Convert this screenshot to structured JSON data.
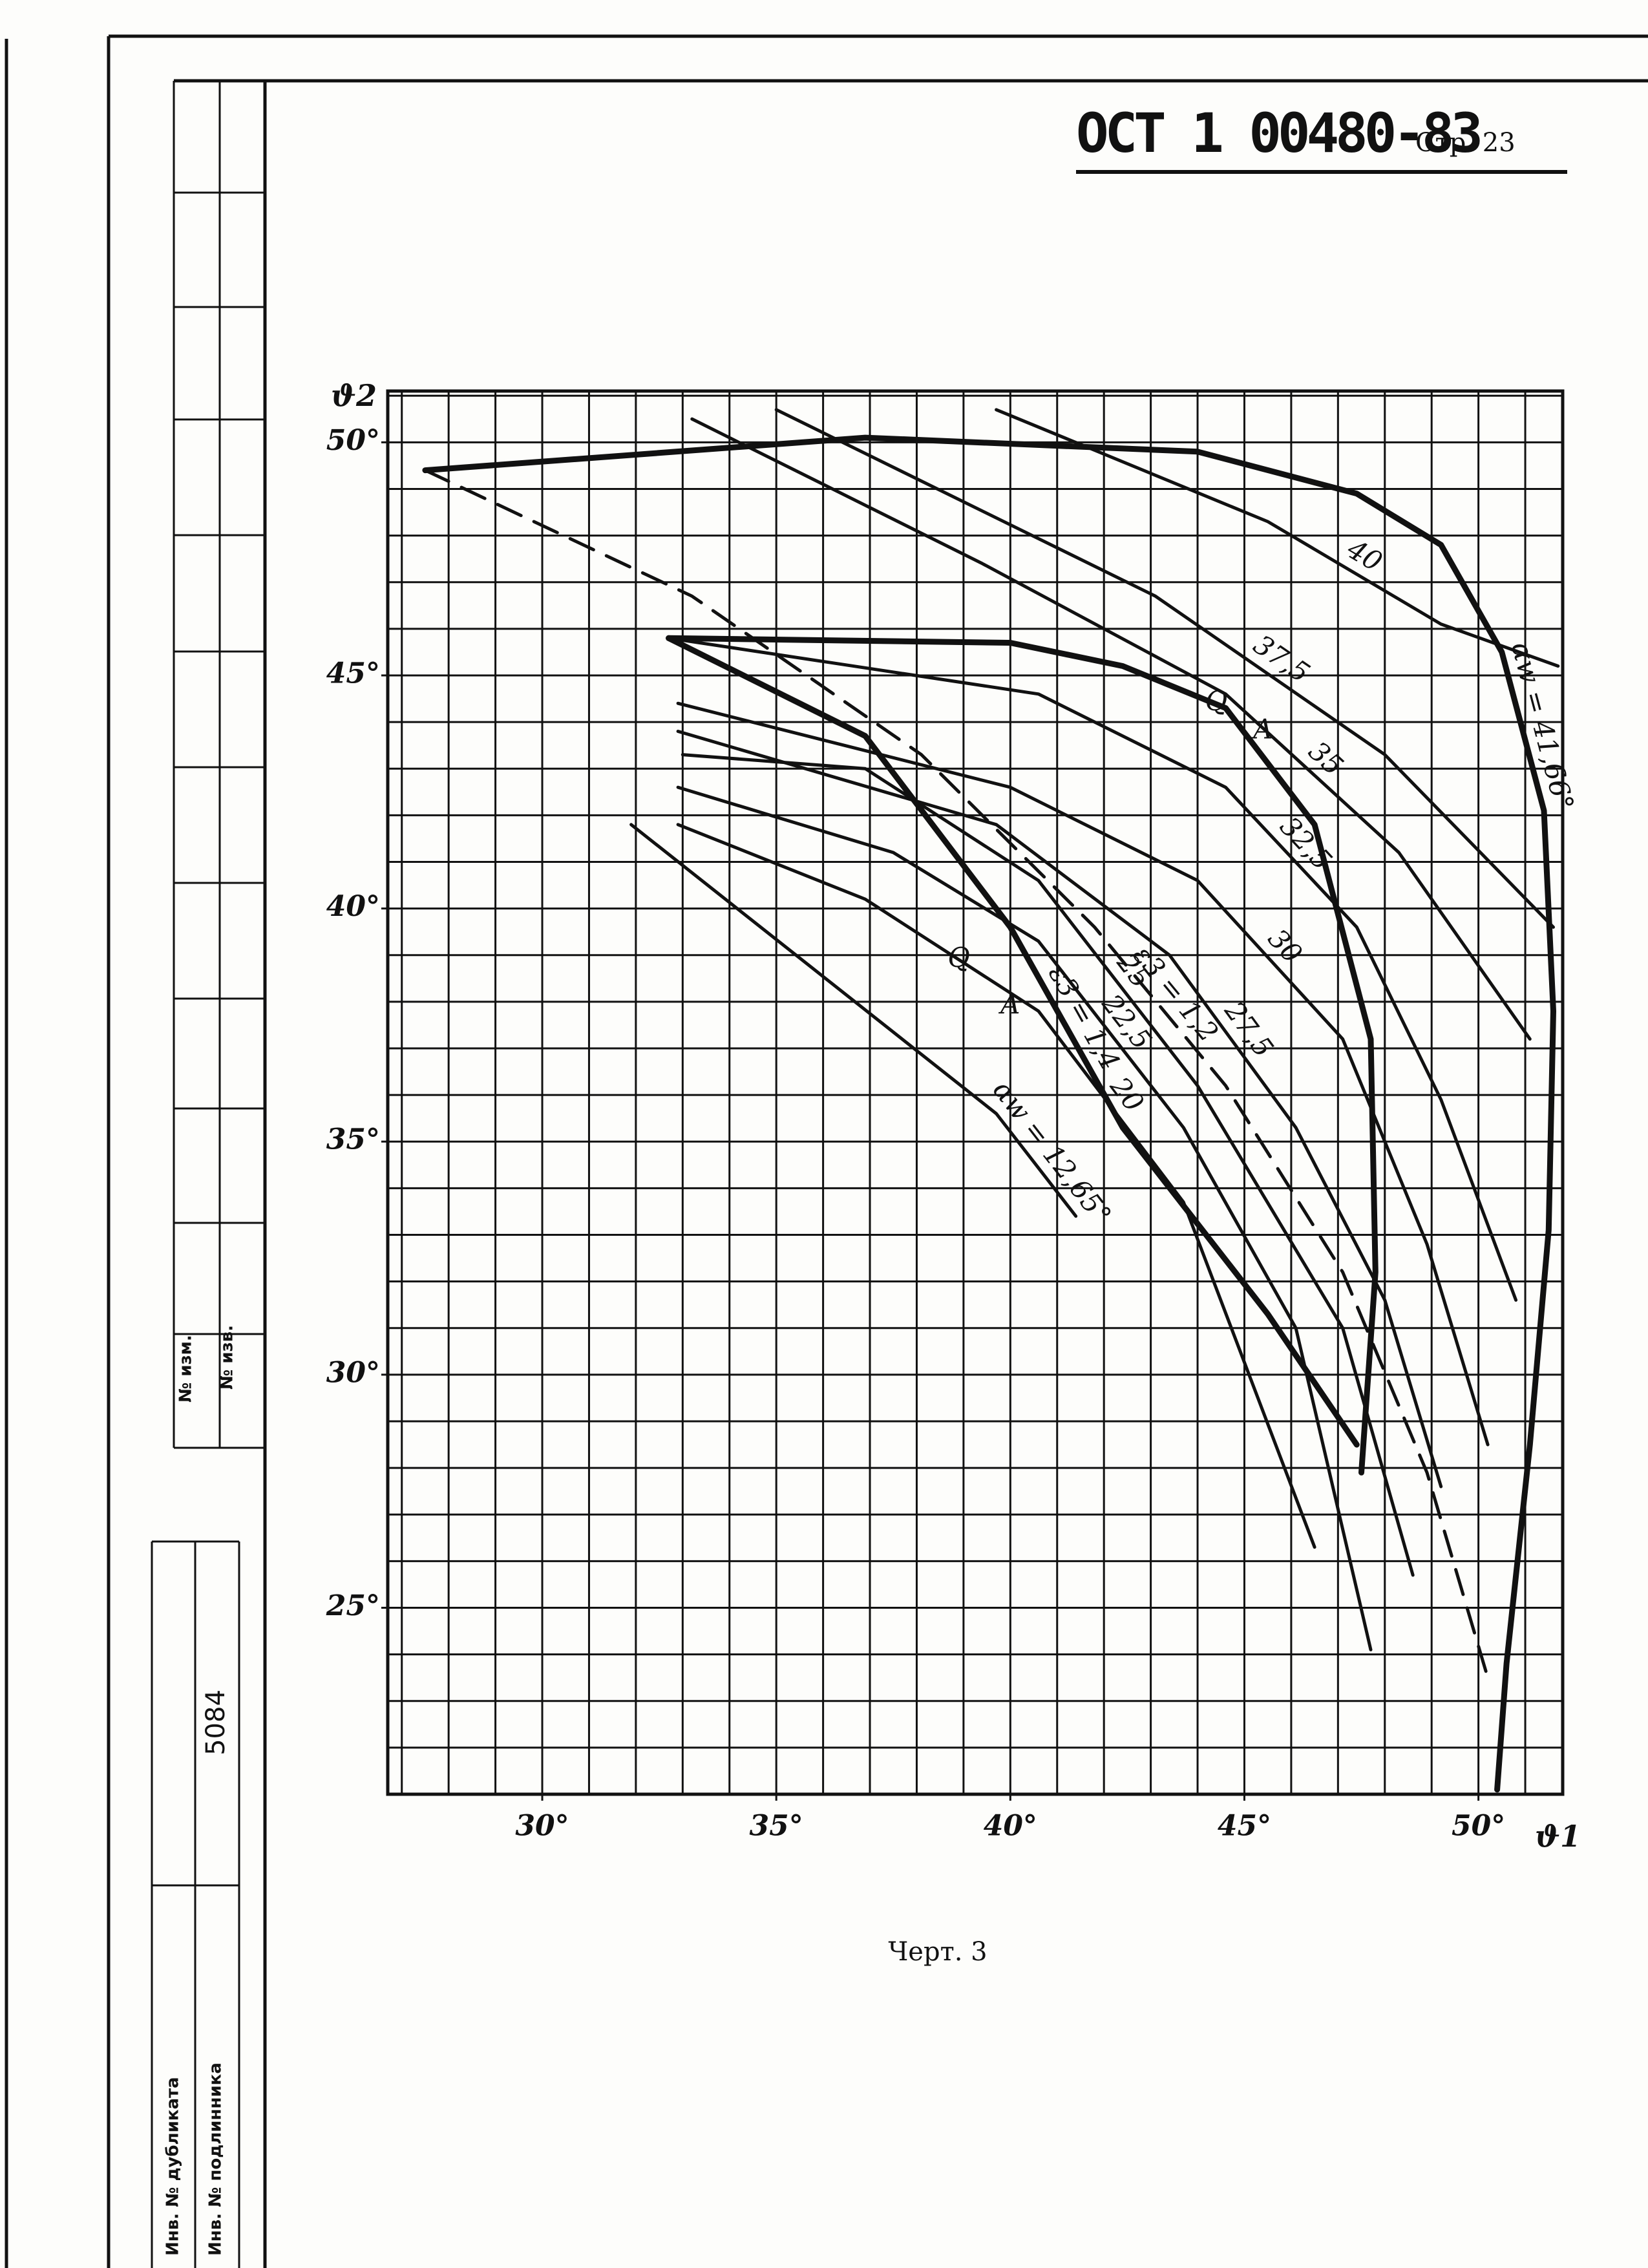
{
  "header": {
    "code": "ОСТ 1 00480-83",
    "page": "Стр. 23"
  },
  "stamp": {
    "change_no": "№ изм.",
    "notice_no": "№ изв.",
    "number": "5084",
    "duplicate_inv": "Инв. № дубликата",
    "original_inv": "Инв. № подлинника"
  },
  "caption": "Черт. 3",
  "chart_data": {
    "type": "line",
    "x_label": "ϑ1",
    "y_label": "ϑ2",
    "xlim": [
      26.7,
      51.8
    ],
    "ylim": [
      21,
      51.1
    ],
    "xticks": [
      {
        "value": 30,
        "label": "30°"
      },
      {
        "value": 35,
        "label": "35°"
      },
      {
        "value": 40,
        "label": "40°"
      },
      {
        "value": 45,
        "label": "45°"
      },
      {
        "value": 50,
        "label": "50°"
      }
    ],
    "yticks": [
      {
        "value": 25,
        "label": "25°"
      },
      {
        "value": 30,
        "label": "30°"
      },
      {
        "value": 35,
        "label": "35°"
      },
      {
        "value": 40,
        "label": "40°"
      },
      {
        "value": 45,
        "label": "45°"
      },
      {
        "value": 50,
        "label": "50°"
      }
    ],
    "grid": true,
    "minor_grid_step": 1,
    "color": "#111111",
    "series": [
      {
        "name": "αw = 41,66°",
        "style": "thick",
        "x": [
          27.5,
          36.9,
          44.0,
          47.4,
          49.2,
          50.5,
          51.4,
          51.6,
          51.5,
          51.1,
          50.6,
          50.4
        ],
        "values": [
          49.4,
          50.1,
          49.8,
          48.9,
          47.8,
          45.5,
          42.1,
          37.8,
          33.1,
          28.5,
          23.8,
          21.1
        ]
      },
      {
        "name": "40",
        "style": "thin",
        "x": [
          39.7,
          45.5,
          49.2,
          51.7
        ],
        "values": [
          50.7,
          48.3,
          46.1,
          45.2
        ]
      },
      {
        "name": "37,5",
        "style": "thin",
        "x": [
          35.0,
          43.1,
          48.0,
          51.6
        ],
        "values": [
          50.7,
          46.7,
          43.3,
          39.6
        ]
      },
      {
        "name": "35",
        "style": "thin",
        "x": [
          33.2,
          39.4,
          44.6,
          48.3,
          51.1
        ],
        "values": [
          50.5,
          47.4,
          44.6,
          41.2,
          37.2
        ]
      },
      {
        "name": "32,5",
        "style": "thin",
        "x": [
          32.7,
          40.6,
          44.6,
          47.4,
          49.2,
          50.8
        ],
        "values": [
          45.8,
          44.6,
          42.6,
          39.6,
          35.9,
          31.6
        ]
      },
      {
        "name": "30",
        "style": "thin",
        "x": [
          32.9,
          40.0,
          44.0,
          47.1,
          48.9,
          50.2
        ],
        "values": [
          44.4,
          42.6,
          40.6,
          37.2,
          32.8,
          28.5
        ]
      },
      {
        "name": "27,5",
        "style": "thin",
        "x": [
          32.9,
          39.7,
          43.4,
          46.1,
          48.0,
          49.2
        ],
        "values": [
          43.8,
          41.8,
          39.0,
          35.3,
          31.6,
          27.6
        ]
      },
      {
        "name": "25",
        "style": "thin",
        "x": [
          33.0,
          36.9,
          40.6,
          44.0,
          47.1,
          48.6
        ],
        "values": [
          43.3,
          43.0,
          40.6,
          36.2,
          31.0,
          25.7
        ]
      },
      {
        "name": "22,5",
        "style": "thin",
        "x": [
          32.9,
          37.5,
          40.6,
          43.7,
          46.1,
          47.7
        ],
        "values": [
          42.6,
          41.2,
          39.3,
          35.3,
          31.0,
          24.1
        ]
      },
      {
        "name": "20",
        "style": "thin",
        "x": [
          32.9,
          36.9,
          40.6,
          43.7,
          46.5
        ],
        "values": [
          41.8,
          40.2,
          37.8,
          33.7,
          26.3
        ]
      },
      {
        "name": "αw = 12,65°",
        "style": "thin",
        "x": [
          31.9,
          39.7,
          41.4
        ],
        "values": [
          41.8,
          35.6,
          33.4
        ]
      },
      {
        "name": "ε3 = 1,2",
        "style": "dashed",
        "x": [
          27.5,
          33.2,
          38.1,
          41.8,
          44.6,
          47.1,
          48.9,
          50.2
        ],
        "values": [
          49.4,
          46.7,
          43.3,
          39.6,
          36.2,
          32.2,
          27.9,
          23.5
        ]
      },
      {
        "name": "ε3 = 1,4",
        "style": "thick",
        "x": [
          32.7,
          36.9,
          40.0,
          42.4,
          45.5,
          47.4
        ],
        "values": [
          45.8,
          43.7,
          39.6,
          35.3,
          31.3,
          28.5
        ]
      },
      {
        "style": "thick",
        "x": [
          32.7,
          40.0,
          42.4,
          44.6,
          46.5,
          47.7,
          47.8,
          47.5
        ],
        "values": [
          45.8,
          45.7,
          45.2,
          44.3,
          41.8,
          37.2,
          32.2,
          27.9
        ]
      }
    ],
    "annotations": [
      {
        "text": "Q",
        "x": 44.4,
        "y": 44.4
      },
      {
        "text": "A",
        "x": 45.4,
        "y": 43.8
      },
      {
        "text": "Q",
        "x": 38.9,
        "y": 38.9
      },
      {
        "text": "A",
        "x": 40.0,
        "y": 37.9
      }
    ]
  }
}
